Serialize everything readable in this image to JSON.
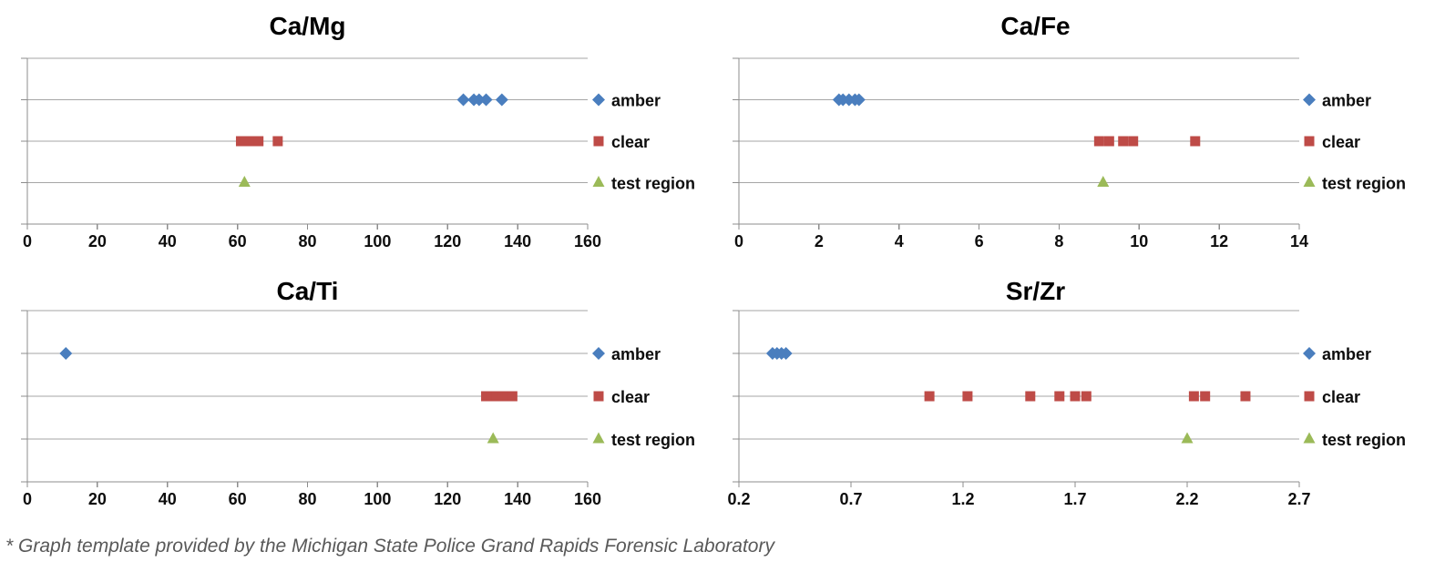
{
  "page": {
    "footnote": "* Graph template provided by the Michigan State Police Grand Rapids Forensic Laboratory"
  },
  "colors": {
    "amber": "#4a7ebe",
    "clear": "#be4b47",
    "test_region": "#9bba58",
    "gridline": "#a6a6a6",
    "axis": "#8c8c8c",
    "footnote_text": "#595959",
    "chart_text": "#000000"
  },
  "legend": {
    "items": [
      {
        "label": "amber",
        "marker": "diamond-icon",
        "color": "#4a7ebe"
      },
      {
        "label": "clear",
        "marker": "square-icon",
        "color": "#be4b47"
      },
      {
        "label": "test region",
        "marker": "triangle-icon",
        "color": "#9bba58"
      }
    ],
    "position": "right"
  },
  "chart_data": [
    {
      "type": "scatter",
      "title": "Ca/Mg",
      "xlim": [
        0,
        160
      ],
      "xticks": [
        "0",
        "20",
        "40",
        "60",
        "80",
        "100",
        "120",
        "140",
        "160"
      ],
      "grid": true,
      "legend_position": "right",
      "series": [
        {
          "name": "amber",
          "marker": "diamond",
          "color": "#4a7ebe",
          "x": [
            124.5,
            127.5,
            129,
            131,
            135.5
          ]
        },
        {
          "name": "clear",
          "marker": "square",
          "color": "#be4b47",
          "x": [
            61,
            62.5,
            64,
            66,
            71.5
          ]
        },
        {
          "name": "test region",
          "marker": "triangle",
          "color": "#9bba58",
          "x": [
            62
          ]
        }
      ]
    },
    {
      "type": "scatter",
      "title": "Ca/Fe",
      "xlim": [
        0,
        14
      ],
      "xticks": [
        "0",
        "2",
        "4",
        "6",
        "8",
        "10",
        "12",
        "14"
      ],
      "grid": true,
      "legend_position": "right",
      "series": [
        {
          "name": "amber",
          "marker": "diamond",
          "color": "#4a7ebe",
          "x": [
            2.5,
            2.6,
            2.75,
            2.9,
            3.0
          ]
        },
        {
          "name": "clear",
          "marker": "square",
          "color": "#be4b47",
          "x": [
            9.0,
            9.25,
            9.6,
            9.85,
            11.4
          ]
        },
        {
          "name": "test region",
          "marker": "triangle",
          "color": "#9bba58",
          "x": [
            9.1
          ]
        }
      ]
    },
    {
      "type": "scatter",
      "title": "Ca/Ti",
      "xlim": [
        0,
        160
      ],
      "xticks": [
        "0",
        "20",
        "40",
        "60",
        "80",
        "100",
        "120",
        "140",
        "160"
      ],
      "grid": true,
      "legend_position": "right",
      "series": [
        {
          "name": "amber",
          "marker": "diamond",
          "color": "#4a7ebe",
          "x": [
            11
          ]
        },
        {
          "name": "clear",
          "marker": "square",
          "color": "#be4b47",
          "x": [
            131,
            132.5,
            134,
            135.5,
            137,
            138.5
          ]
        },
        {
          "name": "test region",
          "marker": "triangle",
          "color": "#9bba58",
          "x": [
            133
          ]
        }
      ]
    },
    {
      "type": "scatter",
      "title": "Sr/Zr",
      "xlim": [
        0.2,
        2.7
      ],
      "xticks": [
        "0.2",
        "0.7",
        "1.2",
        "1.7",
        "2.2",
        "2.7"
      ],
      "grid": true,
      "legend_position": "right",
      "series": [
        {
          "name": "amber",
          "marker": "diamond",
          "color": "#4a7ebe",
          "x": [
            0.35,
            0.37,
            0.39,
            0.41
          ]
        },
        {
          "name": "clear",
          "marker": "square",
          "color": "#be4b47",
          "x": [
            1.05,
            1.22,
            1.5,
            1.63,
            1.7,
            1.75,
            2.23,
            2.28,
            2.46
          ]
        },
        {
          "name": "test region",
          "marker": "triangle",
          "color": "#9bba58",
          "x": [
            2.2
          ]
        }
      ]
    }
  ]
}
